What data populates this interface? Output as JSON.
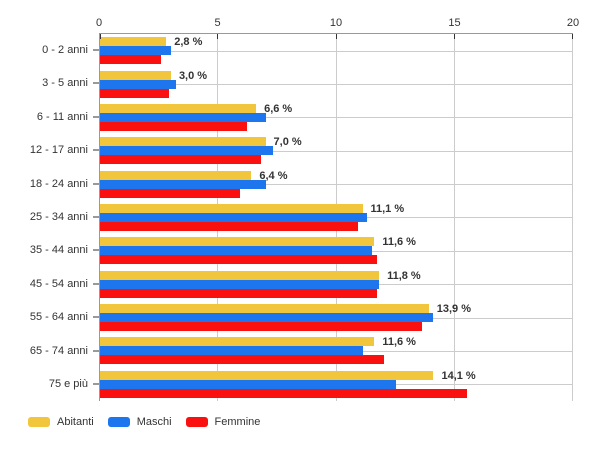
{
  "chart_data": {
    "type": "bar",
    "orientation": "horizontal",
    "title": "",
    "categories": [
      "0 - 2 anni",
      "3 - 5 anni",
      "6 - 11 anni",
      "12 - 17 anni",
      "18 - 24 anni",
      "25 - 34 anni",
      "35 - 44 anni",
      "45 - 54 anni",
      "55 - 64 anni",
      "65 - 74 anni",
      "75 e più"
    ],
    "series": [
      {
        "name": "Abitanti",
        "color": "#F2C63C",
        "values": [
          2.8,
          3.0,
          6.6,
          7.0,
          6.4,
          11.1,
          11.6,
          11.8,
          13.9,
          11.6,
          14.1
        ]
      },
      {
        "name": "Maschi",
        "color": "#1E76EE",
        "values": [
          3.0,
          3.2,
          7.0,
          7.3,
          7.0,
          11.3,
          11.5,
          11.8,
          14.1,
          11.1,
          12.5
        ]
      },
      {
        "name": "Femmine",
        "color": "#FB1010",
        "values": [
          2.6,
          2.9,
          6.2,
          6.8,
          5.9,
          10.9,
          11.7,
          11.7,
          13.6,
          12.0,
          15.5
        ]
      }
    ],
    "value_labels": [
      "2,8 %",
      "3,0 %",
      "6,6 %",
      "7,0 %",
      "6,4 %",
      "11,1 %",
      "11,6 %",
      "11,8 %",
      "13,9 %",
      "11,6 %",
      "14,1 %"
    ],
    "value_labels_series": "Abitanti",
    "xlim": [
      0,
      20
    ],
    "x_ticks": [
      "0",
      "5",
      "10",
      "15",
      "20"
    ],
    "grid": true,
    "legend_position": "bottom-left"
  },
  "colors": {
    "background": "#ffffff",
    "grid": "#cccccc",
    "axis": "#999999",
    "tick": "#333333",
    "text": "#333333"
  }
}
